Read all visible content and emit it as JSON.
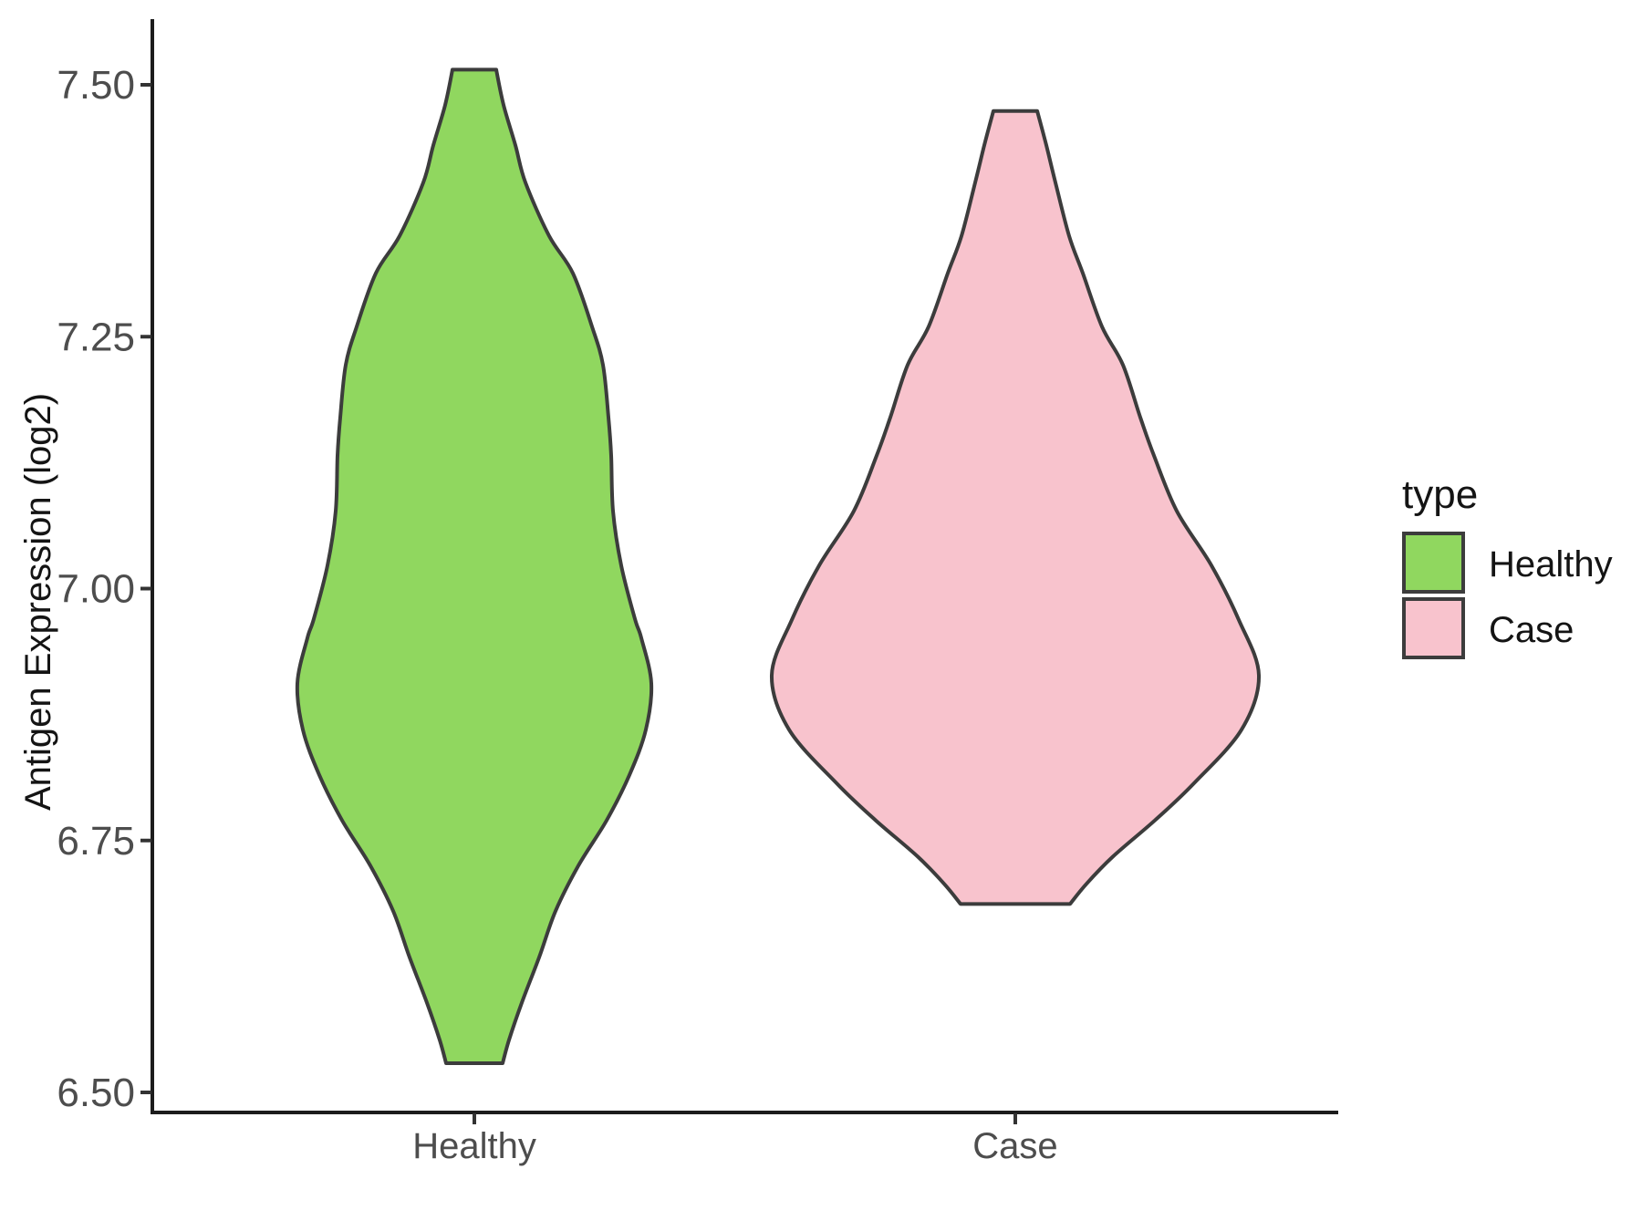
{
  "chart_data": {
    "type": "violin",
    "title": "",
    "xlabel": "",
    "ylabel": "Antigen Expression (log2)",
    "categories": [
      "Healthy",
      "Case"
    ],
    "y_axis": {
      "range": [
        6.44,
        7.57
      ],
      "ticks": [
        {
          "value": 7.5,
          "label": "7.50"
        },
        {
          "value": 7.25,
          "label": "7.25"
        },
        {
          "value": 7.0,
          "label": "7.00"
        },
        {
          "value": 6.75,
          "label": "6.75"
        },
        {
          "value": 6.5,
          "label": "6.50"
        }
      ]
    },
    "grid": "off",
    "legend": {
      "title": "type",
      "position": "right"
    },
    "style": {
      "outline": "#3c3c3c",
      "axis_line": "#1c1c1c",
      "tick_mark": "#333333",
      "axis_text": "#4d4d4d",
      "background": "#ffffff"
    },
    "series": [
      {
        "name": "Healthy",
        "color": "#90d75f",
        "data_min": 6.53,
        "data_max": 7.52,
        "profile": [
          [
            7.515,
            24
          ],
          [
            7.48,
            32
          ],
          [
            7.44,
            45
          ],
          [
            7.403,
            56
          ],
          [
            7.35,
            82
          ],
          [
            7.313,
            108
          ],
          [
            7.26,
            129
          ],
          [
            7.222,
            141
          ],
          [
            7.17,
            147
          ],
          [
            7.132,
            150
          ],
          [
            7.077,
            152
          ],
          [
            7.023,
            161
          ],
          [
            6.97,
            176
          ],
          [
            6.951,
            183
          ],
          [
            6.906,
            194
          ],
          [
            6.86,
            188
          ],
          [
            6.815,
            170
          ],
          [
            6.77,
            145
          ],
          [
            6.725,
            114
          ],
          [
            6.68,
            89
          ],
          [
            6.634,
            71
          ],
          [
            6.589,
            52
          ],
          [
            6.552,
            38
          ],
          [
            6.529,
            31
          ]
        ]
      },
      {
        "name": "Case",
        "color": "#f8c3cd",
        "data_min": 6.69,
        "data_max": 7.47,
        "profile": [
          [
            7.474,
            24
          ],
          [
            7.44,
            34
          ],
          [
            7.403,
            44
          ],
          [
            7.35,
            59
          ],
          [
            7.313,
            74
          ],
          [
            7.26,
            95
          ],
          [
            7.222,
            118
          ],
          [
            7.17,
            137
          ],
          [
            7.132,
            152
          ],
          [
            7.077,
            177
          ],
          [
            7.023,
            215
          ],
          [
            6.969,
            245
          ],
          [
            6.914,
            267
          ],
          [
            6.86,
            248
          ],
          [
            6.806,
            195
          ],
          [
            6.77,
            153
          ],
          [
            6.734,
            107
          ],
          [
            6.707,
            78
          ],
          [
            6.687,
            60
          ]
        ]
      }
    ]
  }
}
